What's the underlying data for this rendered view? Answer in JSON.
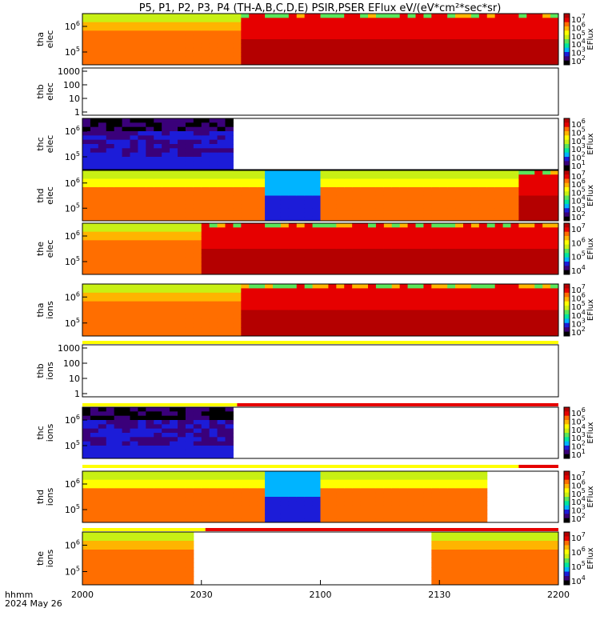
{
  "chart_data": {
    "type": "heatmap",
    "title": "P5, P1, P2, P3, P4 (TH-A,B,C,D,E) PSIR,PSER EFlux eV/(eV*cm²*sec*sr)",
    "x_axis": {
      "ticks": [
        "2000",
        "2030",
        "2100",
        "2130",
        "2200"
      ],
      "range": [
        "2000",
        "2200"
      ],
      "unit_label": "hhmm",
      "date_label": "2024 May 26"
    },
    "palette": [
      "#000000",
      "#3a007a",
      "#1c1cd8",
      "#00b4ff",
      "#00e6a0",
      "#5ae65a",
      "#c8f014",
      "#ffff00",
      "#ffb400",
      "#ff6e00",
      "#e60000",
      "#b40000"
    ],
    "panels": [
      {
        "id": "tha-elec",
        "ylabel_1": "tha",
        "ylabel_2": "elec",
        "yticks": [
          "10^6",
          "10^5"
        ],
        "colorbar_label": "EFlux",
        "colorbar_ticks": [
          "10^7",
          "10^6",
          "10^5",
          "10^4",
          "10^3",
          "10^2"
        ],
        "regime_split_hhmm": 2040,
        "regions": [
          {
            "from": 2000,
            "to": 2040,
            "description": "yellow-orange spectrum"
          },
          {
            "from": 2040,
            "to": 2200,
            "description": "saturated red"
          }
        ]
      },
      {
        "id": "thb-elec",
        "ylabel_1": "thb",
        "ylabel_2": "elec",
        "yticks": [
          "1000",
          "100",
          "10",
          "1"
        ],
        "empty": true
      },
      {
        "id": "thc-elec",
        "ylabel_1": "thc",
        "ylabel_2": "elec",
        "yticks": [
          "10^6",
          "10^5"
        ],
        "colorbar_label": "EFlux",
        "colorbar_ticks": [
          "10^6",
          "10^5",
          "10^4",
          "10^3",
          "10^2",
          "10^1"
        ],
        "data_end_hhmm": 2039
      },
      {
        "id": "thd-elec",
        "ylabel_1": "thd",
        "ylabel_2": "elec",
        "yticks": [
          "10^6",
          "10^5"
        ],
        "colorbar_label": "EFlux",
        "colorbar_ticks": [
          "10^7",
          "10^6",
          "10^5",
          "10^4",
          "10^3",
          "10^2"
        ],
        "regime_split_hhmm": 2150
      },
      {
        "id": "the-elec",
        "ylabel_1": "the",
        "ylabel_2": "elec",
        "yticks": [
          "10^6",
          "10^5"
        ],
        "colorbar_label": "EFlux",
        "colorbar_ticks": [
          "10^7",
          "10^6",
          "10^5",
          "10^4"
        ],
        "regime_split_hhmm": 2030
      },
      {
        "id": "tha-ions",
        "ylabel_1": "tha",
        "ylabel_2": "ions",
        "yticks": [
          "10^6",
          "10^5"
        ],
        "colorbar_label": "EFlux",
        "colorbar_ticks": [
          "10^7",
          "10^6",
          "10^5",
          "10^4",
          "10^3",
          "10^2"
        ],
        "regime_split_hhmm": 2040
      },
      {
        "id": "thb-ions",
        "ylabel_1": "thb",
        "ylabel_2": "ions",
        "yticks": [
          "1000",
          "100",
          "10",
          "1"
        ],
        "empty": true
      },
      {
        "id": "thc-ions",
        "ylabel_1": "thc",
        "ylabel_2": "ions",
        "yticks": [
          "10^6",
          "10^5"
        ],
        "colorbar_label": "EFlux",
        "colorbar_ticks": [
          "10^6",
          "10^5",
          "10^4",
          "10^3",
          "10^2",
          "10^1"
        ],
        "data_end_hhmm": 2039
      },
      {
        "id": "thd-ions",
        "ylabel_1": "thd",
        "ylabel_2": "ions",
        "yticks": [
          "10^6",
          "10^5"
        ],
        "colorbar_label": "EFlux",
        "colorbar_ticks": [
          "10^7",
          "10^6",
          "10^5",
          "10^4",
          "10^3",
          "10^2"
        ],
        "data_end_hhmm": 2143
      },
      {
        "id": "the-ions",
        "ylabel_1": "the",
        "ylabel_2": "ions",
        "yticks": [
          "10^6",
          "10^5"
        ],
        "colorbar_label": "EFlux",
        "colorbar_ticks": [
          "10^7",
          "10^6",
          "10^5",
          "10^4"
        ],
        "data_gap_hhmm": [
          2028,
          2128
        ]
      }
    ],
    "mode_bars": [
      {
        "segments": [
          {
            "from": 2000,
            "to": 2000,
            "color": "#ffff00"
          }
        ]
      },
      {
        "segments": [
          {
            "from": 2000,
            "to": 2200,
            "color": "#ffff00"
          }
        ]
      },
      {
        "segments": [
          {
            "from": 2000,
            "to": 2039,
            "color": "#ffff00"
          },
          {
            "from": 2039,
            "to": 2200,
            "color": "#e60000"
          }
        ]
      },
      {
        "segments": [
          {
            "from": 2000,
            "to": 2150,
            "color": "#ffff00"
          },
          {
            "from": 2150,
            "to": 2200,
            "color": "#e60000"
          }
        ]
      },
      {
        "segments": [
          {
            "from": 2000,
            "to": 2031,
            "color": "#ffff00"
          },
          {
            "from": 2031,
            "to": 2200,
            "color": "#e60000"
          }
        ]
      }
    ]
  }
}
